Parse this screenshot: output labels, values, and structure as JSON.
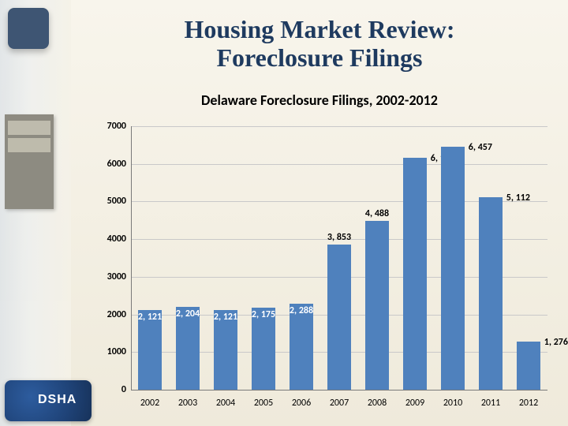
{
  "title": {
    "line1": "Housing Market Review:",
    "line2": "Foreclosure Filings",
    "color": "#1e3a5f",
    "fontsize": 32,
    "font_family": "Georgia"
  },
  "chart": {
    "type": "bar",
    "title": "Delaware Foreclosure Filings, 2002-2012",
    "title_fontsize": 18,
    "title_font_family": "Calibri",
    "categories": [
      "2002",
      "2003",
      "2004",
      "2005",
      "2006",
      "2007",
      "2008",
      "2009",
      "2010",
      "2011",
      "2012"
    ],
    "values": [
      2121,
      2204,
      2121,
      2175,
      2288,
      3853,
      4488,
      6157,
      6457,
      5112,
      1276
    ],
    "value_labels": [
      "2, 121",
      "2, 204",
      "2, 121",
      "2, 175",
      "2, 288",
      "3, 853",
      "4, 488",
      "6, 157",
      "6, 457",
      "5, 112",
      "1, 276"
    ],
    "bar_color": "#4f81bd",
    "bar_width": 0.62,
    "ylim": [
      0,
      7000
    ],
    "ytick_step": 1000,
    "axis_color": "#7a7a7a",
    "grid_color": "#c9c9c9",
    "tick_label_fontsize": 12,
    "tick_label_bold_y": true,
    "background_color": "transparent",
    "label_inside_color": "#ffffff",
    "label_outside_color": "#000000",
    "label_placement": [
      "inside",
      "inside",
      "inside",
      "inside",
      "inside",
      "above",
      "above",
      "right",
      "right",
      "right",
      "right"
    ]
  }
}
